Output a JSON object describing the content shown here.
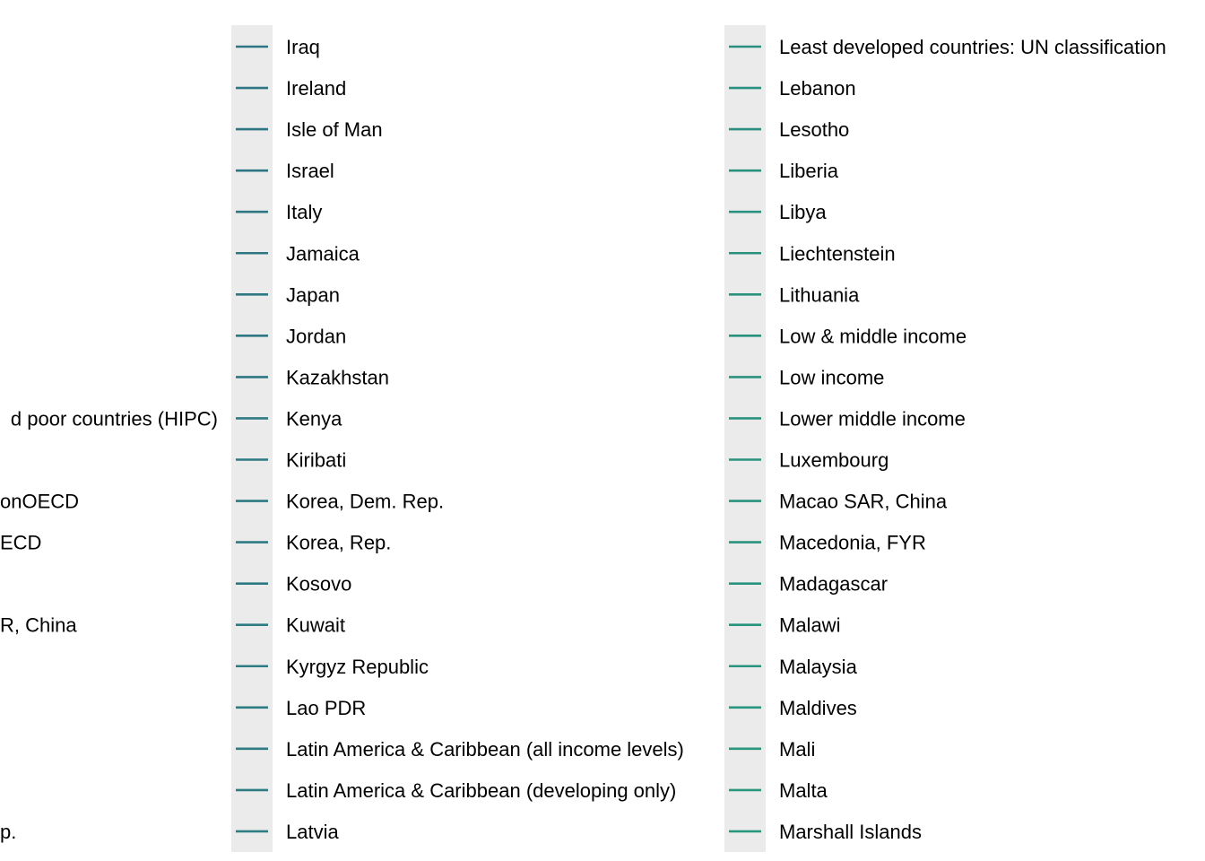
{
  "chart_data": {
    "type": "line",
    "title": "",
    "xlabel": "",
    "ylabel": "",
    "legend": {
      "placement": "right",
      "background_color": "#ebebeb",
      "columns": [
        {
          "partial": true,
          "items": [
            {
              "label": "",
              "color": "#2f6f84"
            },
            {
              "label": "",
              "color": "#2f6f84"
            },
            {
              "label": "",
              "color": "#2f6f84"
            },
            {
              "label": "",
              "color": "#2f7083"
            },
            {
              "label": "",
              "color": "#2f7083"
            },
            {
              "label": "",
              "color": "#2f7183"
            },
            {
              "label": "",
              "color": "#2f7183"
            },
            {
              "label": "",
              "color": "#2f7183"
            },
            {
              "label": "",
              "color": "#2f7283"
            },
            {
              "label": "d poor countries (HIPC)",
              "color": "#2f7283"
            },
            {
              "label": "",
              "color": "#2f7283"
            },
            {
              "label": "onOECD",
              "color": "#2f7383"
            },
            {
              "label": "ECD",
              "color": "#2f7383"
            },
            {
              "label": "",
              "color": "#2f7383"
            },
            {
              "label": "R, China",
              "color": "#2f7483"
            },
            {
              "label": "",
              "color": "#2f7483"
            },
            {
              "label": "",
              "color": "#2f7483"
            },
            {
              "label": "",
              "color": "#2f7583"
            },
            {
              "label": "",
              "color": "#2f7583"
            },
            {
              "label": "p.",
              "color": "#2f7583"
            }
          ]
        },
        {
          "partial": false,
          "items": [
            {
              "label": "Iraq",
              "color": "#2e7583"
            },
            {
              "label": "Ireland",
              "color": "#2e7683"
            },
            {
              "label": "Isle of Man",
              "color": "#2e7683"
            },
            {
              "label": "Israel",
              "color": "#2e7683"
            },
            {
              "label": "Italy",
              "color": "#2e7783"
            },
            {
              "label": "Jamaica",
              "color": "#2e7783"
            },
            {
              "label": "Japan",
              "color": "#2e7883"
            },
            {
              "label": "Jordan",
              "color": "#2e7883"
            },
            {
              "label": "Kazakhstan",
              "color": "#2e7883"
            },
            {
              "label": "Kenya",
              "color": "#2e7983"
            },
            {
              "label": "Kiribati",
              "color": "#2e7983"
            },
            {
              "label": "Korea, Dem. Rep.",
              "color": "#2d7a83"
            },
            {
              "label": "Korea, Rep.",
              "color": "#2d7a83"
            },
            {
              "label": "Kosovo",
              "color": "#2d7a83"
            },
            {
              "label": "Kuwait",
              "color": "#2d7b83"
            },
            {
              "label": "Kyrgyz Republic",
              "color": "#2d7b83"
            },
            {
              "label": "Lao PDR",
              "color": "#2d7c83"
            },
            {
              "label": "Latin America & Caribbean (all income levels)",
              "color": "#2d7c83"
            },
            {
              "label": "Latin America & Caribbean (developing only)",
              "color": "#2d7c82"
            },
            {
              "label": "Latvia",
              "color": "#2d7d82"
            }
          ]
        },
        {
          "partial": false,
          "items": [
            {
              "label": "Least developed countries: UN classification",
              "color": "#2a8f80"
            },
            {
              "label": "Lebanon",
              "color": "#2a8f80"
            },
            {
              "label": "Lesotho",
              "color": "#2a8f80"
            },
            {
              "label": "Liberia",
              "color": "#2a9080"
            },
            {
              "label": "Libya",
              "color": "#2a9080"
            },
            {
              "label": "Liechtenstein",
              "color": "#2a9080"
            },
            {
              "label": "Lithuania",
              "color": "#2a917f"
            },
            {
              "label": "Low & middle income",
              "color": "#2a917f"
            },
            {
              "label": "Low income",
              "color": "#2a927f"
            },
            {
              "label": "Lower middle income",
              "color": "#2a927f"
            },
            {
              "label": "Luxembourg",
              "color": "#2a927f"
            },
            {
              "label": "Macao SAR, China",
              "color": "#29937f"
            },
            {
              "label": "Macedonia, FYR",
              "color": "#29937f"
            },
            {
              "label": "Madagascar",
              "color": "#29947e"
            },
            {
              "label": "Malawi",
              "color": "#29947e"
            },
            {
              "label": "Malaysia",
              "color": "#29957e"
            },
            {
              "label": "Maldives",
              "color": "#29957e"
            },
            {
              "label": "Mali",
              "color": "#29967e"
            },
            {
              "label": "Malta",
              "color": "#29967e"
            },
            {
              "label": "Marshall Islands",
              "color": "#29977e"
            }
          ]
        }
      ]
    }
  }
}
